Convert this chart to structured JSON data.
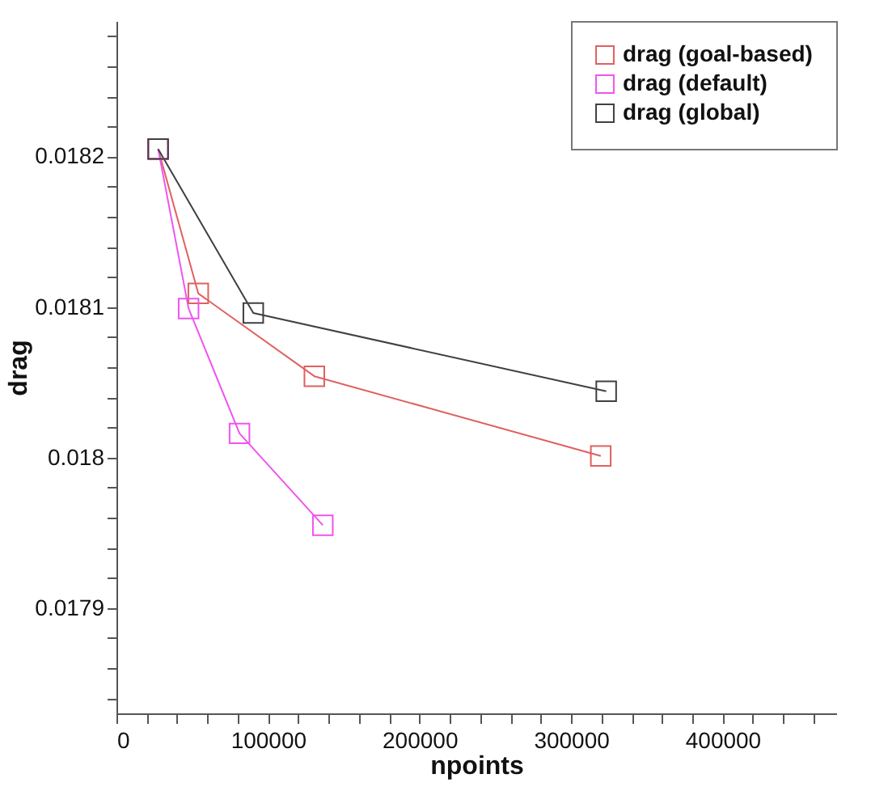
{
  "chart_data": {
    "type": "line",
    "xlabel": "npoints",
    "ylabel": "drag",
    "xlim": [
      0,
      475000
    ],
    "xticks": [
      0,
      {
        "value": 20000,
        "label": null
      },
      {
        "value": 40000,
        "label": null
      },
      {
        "value": 60000,
        "label": null
      },
      {
        "value": 80000,
        "label": null
      },
      100000,
      {
        "value": 120000,
        "label": null
      },
      {
        "value": 140000,
        "label": null
      },
      {
        "value": 160000,
        "label": null
      },
      {
        "value": 180000,
        "label": null
      },
      200000,
      {
        "value": 220000,
        "label": null
      },
      {
        "value": 240000,
        "label": null
      },
      {
        "value": 260000,
        "label": null
      },
      {
        "value": 280000,
        "label": null
      },
      300000,
      {
        "value": 320000,
        "label": null
      },
      {
        "value": 340000,
        "label": null
      },
      {
        "value": 360000,
        "label": null
      },
      {
        "value": 380000,
        "label": null
      },
      400000,
      {
        "value": 420000,
        "label": null
      },
      {
        "value": 440000,
        "label": null
      },
      {
        "value": 460000,
        "label": null
      }
    ],
    "ylim": [
      0.01783,
      0.01829
    ],
    "yticks": [
      {
        "value": 0.01784,
        "label": null
      },
      {
        "value": 0.01786,
        "label": null
      },
      {
        "value": 0.01788,
        "label": null
      },
      0.0179,
      {
        "value": 0.01792,
        "label": null
      },
      {
        "value": 0.01794,
        "label": null
      },
      {
        "value": 0.01796,
        "label": null
      },
      {
        "value": 0.01798,
        "label": null
      },
      0.018,
      {
        "value": 0.01802,
        "label": null
      },
      {
        "value": 0.01804,
        "label": null
      },
      {
        "value": 0.01806,
        "label": null
      },
      {
        "value": 0.01808,
        "label": null
      },
      0.0181,
      {
        "value": 0.01812,
        "label": null
      },
      {
        "value": 0.01814,
        "label": null
      },
      {
        "value": 0.01816,
        "label": null
      },
      {
        "value": 0.01818,
        "label": null
      },
      0.0182,
      {
        "value": 0.01822,
        "label": null
      },
      {
        "value": 0.01824,
        "label": null
      },
      {
        "value": 0.01826,
        "label": null
      },
      {
        "value": 0.01828,
        "label": null
      }
    ],
    "grid": false,
    "legend": "top right",
    "marker": "square",
    "line_style": "solid",
    "series": [
      {
        "name": "drag (goal-based)",
        "color": "#e06060",
        "x": [
          27500,
          54000,
          130600,
          319600
        ],
        "values": [
          0.018205,
          0.018109,
          0.018054,
          0.018001
        ]
      },
      {
        "name": "drag (default)",
        "color": "#ee55ee",
        "x": [
          27500,
          47600,
          81200,
          136200
        ],
        "values": [
          0.018205,
          0.018099,
          0.018016,
          0.017955
        ]
      },
      {
        "name": "drag (global)",
        "color": "#404040",
        "x": [
          27500,
          90300,
          323200
        ],
        "values": [
          0.018205,
          0.018096,
          0.018044
        ]
      }
    ]
  }
}
